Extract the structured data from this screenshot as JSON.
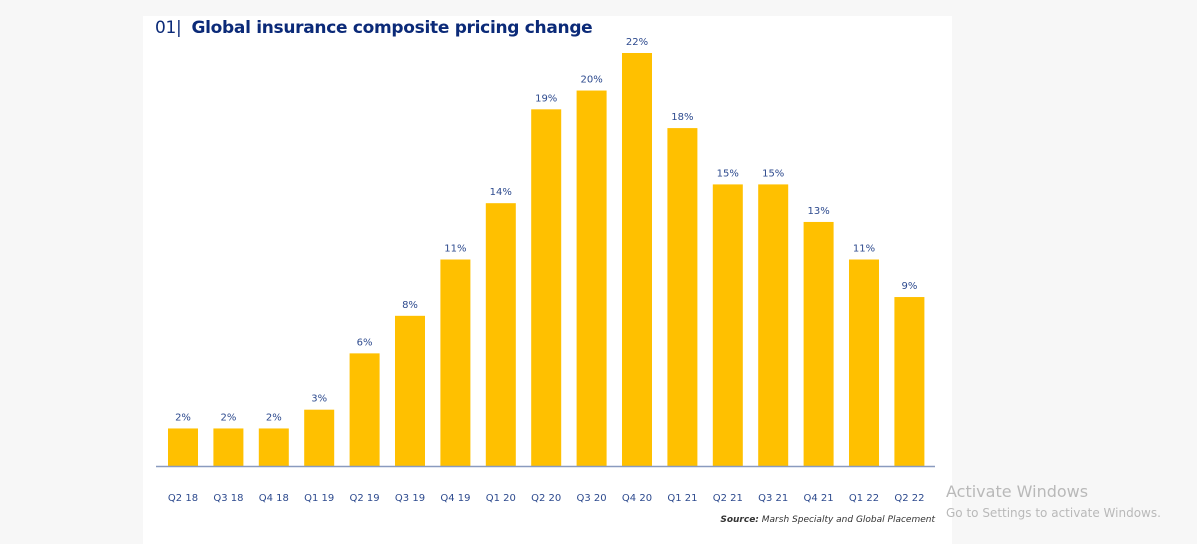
{
  "header": {
    "number": "01|",
    "title": "Global insurance composite pricing change"
  },
  "chart_data": {
    "type": "bar",
    "title": "Global insurance composite pricing change",
    "xlabel": "",
    "ylabel": "",
    "categories": [
      "Q2 18",
      "Q3 18",
      "Q4 18",
      "Q1 19",
      "Q2 19",
      "Q3 19",
      "Q4 19",
      "Q1 20",
      "Q2 20",
      "Q3 20",
      "Q4 20",
      "Q1 21",
      "Q2 21",
      "Q3 21",
      "Q4 21",
      "Q1 22",
      "Q2 22"
    ],
    "values": [
      2,
      2,
      2,
      3,
      6,
      8,
      11,
      14,
      19,
      20,
      22,
      18,
      15,
      15,
      13,
      11,
      9
    ],
    "data_labels": [
      "2%",
      "2%",
      "2%",
      "3%",
      "6%",
      "8%",
      "11%",
      "14%",
      "19%",
      "20%",
      "22%",
      "18%",
      "15%",
      "15%",
      "13%",
      "11%",
      "9%"
    ],
    "unit": "%",
    "ylim": [
      0,
      22
    ],
    "grid": false,
    "legend": "none",
    "bar_color": "#ffc000",
    "axis_color": "#8a9bbf",
    "label_color": "#2d4a8e"
  },
  "source": {
    "label": "Source:",
    "text": "Marsh Specialty and Global Placement"
  },
  "watermark": {
    "line1": "Activate Windows",
    "line2": "Go to Settings to activate Windows."
  }
}
